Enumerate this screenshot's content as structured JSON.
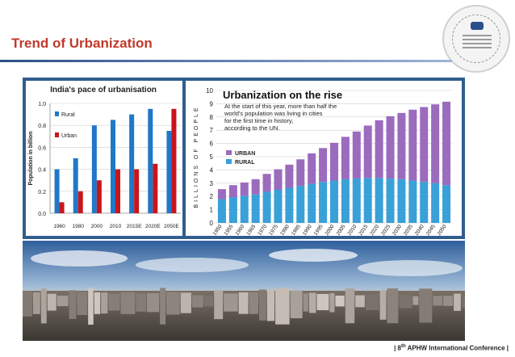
{
  "slide": {
    "title": "Trend of Urbanization",
    "footer_prefix": "| 8",
    "footer_sup": "th",
    "footer_suffix": "APHW International Conference |"
  },
  "chart_data": [
    {
      "type": "bar",
      "title": "India's pace of urbanisation",
      "ylabel": "Population in billion",
      "xlabel": "",
      "categories": [
        "1960",
        "1980",
        "2000",
        "2010",
        "2015E",
        "2020E",
        "2050E"
      ],
      "series": [
        {
          "name": "Rural",
          "color": "#1f78c8",
          "values": [
            0.4,
            0.5,
            0.8,
            0.85,
            0.9,
            0.95,
            0.75
          ]
        },
        {
          "name": "Urban",
          "color": "#c8151b",
          "values": [
            0.1,
            0.2,
            0.3,
            0.4,
            0.4,
            0.45,
            0.95
          ]
        }
      ],
      "ylim": [
        0,
        1.0
      ],
      "yticks": [
        "0.0",
        "0.2",
        "0.4",
        "0.6",
        "0.8",
        "1.0"
      ],
      "grid": true,
      "legend": "top-left"
    },
    {
      "type": "bar",
      "stacked": true,
      "title": "Urbanization on the rise",
      "annotation": [
        "At the start of this year, more than half the",
        "world's population was living in cities",
        "for the first time in history,",
        "according to the UN."
      ],
      "ylabel": "BILLIONS OF PEOPLE",
      "xlabel": "",
      "categories": [
        "1950",
        "1955",
        "1960",
        "1965",
        "1970",
        "1975",
        "1980",
        "1985",
        "1990",
        "1995",
        "2000",
        "2005",
        "2010",
        "2015",
        "2020",
        "2025",
        "2030",
        "2035",
        "2040",
        "2045",
        "2050"
      ],
      "series": [
        {
          "name": "RURAL",
          "color": "#3aa0d8",
          "values": [
            1.8,
            1.95,
            2.05,
            2.15,
            2.35,
            2.5,
            2.65,
            2.8,
            2.95,
            3.1,
            3.2,
            3.3,
            3.35,
            3.4,
            3.4,
            3.35,
            3.3,
            3.2,
            3.1,
            3.0,
            2.85
          ]
        },
        {
          "name": "URBAN",
          "color": "#9b6bbd",
          "values": [
            0.75,
            0.9,
            1.0,
            1.15,
            1.35,
            1.55,
            1.75,
            2.0,
            2.3,
            2.55,
            2.85,
            3.2,
            3.55,
            3.95,
            4.35,
            4.7,
            5.0,
            5.35,
            5.65,
            5.95,
            6.3
          ]
        }
      ],
      "ylim": [
        0,
        10
      ],
      "yticks": [
        "0",
        "1",
        "2",
        "3",
        "4",
        "5",
        "6",
        "7",
        "8",
        "9",
        "10"
      ],
      "grid": true,
      "legend": "middle-left"
    }
  ]
}
